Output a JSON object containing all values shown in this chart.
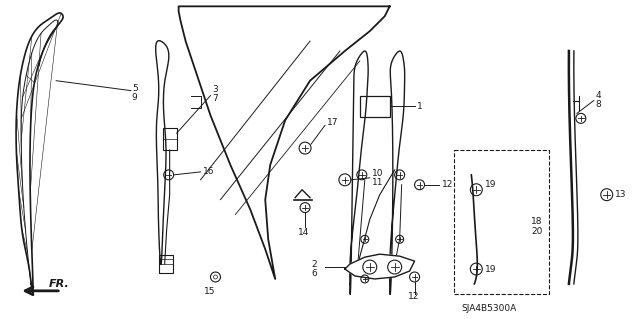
{
  "bg_color": "#ffffff",
  "line_color": "#1a1a1a",
  "diagram_code": "SJA4B5300A",
  "figsize": [
    6.4,
    3.19
  ],
  "dpi": 100
}
